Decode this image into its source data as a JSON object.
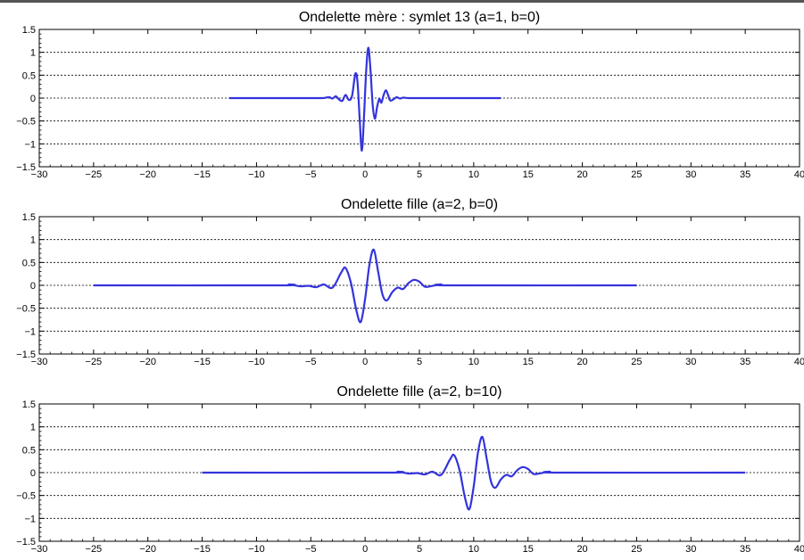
{
  "colors": {
    "line": "#3333dd",
    "grid": "#000000",
    "axis": "#000000",
    "background": "#ffffff"
  },
  "chart_data": [
    {
      "type": "line",
      "title": "Ondelette mère : symlet 13 (a=1, b=0)",
      "xlabel": "",
      "ylabel": "",
      "xlim": [
        -30,
        40
      ],
      "ylim": [
        -1.5,
        1.5
      ],
      "xticks": [
        -30,
        -25,
        -20,
        -15,
        -10,
        -5,
        0,
        5,
        10,
        15,
        20,
        25,
        30,
        35,
        40
      ],
      "xtick_labels": [
        "−30",
        "−25",
        "−20",
        "−15",
        "−10",
        "−5",
        "0",
        "5",
        "10",
        "15",
        "20",
        "25",
        "30",
        "35",
        "40"
      ],
      "yticks": [
        -1.5,
        -1,
        -0.5,
        0,
        0.5,
        1,
        1.5
      ],
      "ytick_labels": [
        "−1.5",
        "−1",
        "−0.5",
        "0",
        "0.5",
        "1",
        "1.5"
      ],
      "grid": "horizontal dotted",
      "series": [
        {
          "x": [
            -12.5,
            -5,
            -4,
            -3.6,
            -3.3,
            -3.0,
            -2.7,
            -2.4,
            -2.1,
            -1.8,
            -1.5,
            -1.2,
            -0.9,
            -0.7,
            -0.5,
            -0.3,
            -0.1,
            0.1,
            0.3,
            0.5,
            0.7,
            0.9,
            1.1,
            1.3,
            1.5,
            1.7,
            1.9,
            2.1,
            2.3,
            2.6,
            2.9,
            3.2,
            3.5,
            4.0,
            5.0,
            12.5
          ],
          "y": [
            0,
            0,
            0,
            0.01,
            0.02,
            -0.01,
            0.04,
            -0.03,
            -0.06,
            0.07,
            -0.04,
            0.05,
            0.53,
            0.35,
            -0.45,
            -1.15,
            -0.4,
            0.6,
            1.1,
            0.6,
            -0.15,
            -0.45,
            -0.2,
            -0.02,
            -0.1,
            0.06,
            0.17,
            0.08,
            -0.05,
            -0.03,
            0.02,
            -0.01,
            0.01,
            0,
            0,
            0
          ]
        }
      ]
    },
    {
      "type": "line",
      "title": "Ondelette fille (a=2, b=0)",
      "xlabel": "",
      "ylabel": "",
      "xlim": [
        -30,
        40
      ],
      "ylim": [
        -1.5,
        1.5
      ],
      "xticks": [
        -30,
        -25,
        -20,
        -15,
        -10,
        -5,
        0,
        5,
        10,
        15,
        20,
        25,
        30,
        35,
        40
      ],
      "xtick_labels": [
        "−30",
        "−25",
        "−20",
        "−15",
        "−10",
        "−5",
        "0",
        "5",
        "10",
        "15",
        "20",
        "25",
        "30",
        "35",
        "40"
      ],
      "yticks": [
        -1.5,
        -1,
        -0.5,
        0,
        0.5,
        1,
        1.5
      ],
      "ytick_labels": [
        "−1.5",
        "−1",
        "−0.5",
        "0",
        "0.5",
        "1",
        "1.5"
      ],
      "grid": "horizontal dotted",
      "series": [
        {
          "x": [
            -25,
            -8,
            -7,
            -6,
            -5.2,
            -4.5,
            -3.8,
            -3.0,
            -2.2,
            -1.8,
            -1.3,
            -0.8,
            -0.4,
            0,
            0.4,
            0.8,
            1.2,
            1.6,
            2.0,
            2.5,
            3.0,
            3.5,
            4.0,
            4.5,
            5.0,
            5.5,
            6.0,
            7.0,
            8.0,
            25
          ],
          "y": [
            0,
            0,
            0.02,
            -0.02,
            -0.01,
            -0.04,
            0.02,
            -0.05,
            0.28,
            0.38,
            0.05,
            -0.55,
            -0.8,
            -0.3,
            0.45,
            0.78,
            0.3,
            -0.2,
            -0.33,
            -0.15,
            -0.05,
            -0.08,
            0.05,
            0.12,
            0.08,
            -0.03,
            -0.02,
            0.02,
            0,
            0
          ]
        }
      ]
    },
    {
      "type": "line",
      "title": "Ondelette fille (a=2, b=10)",
      "xlabel": "",
      "ylabel": "",
      "xlim": [
        -30,
        40
      ],
      "ylim": [
        -1.5,
        1.5
      ],
      "xticks": [
        -30,
        -25,
        -20,
        -15,
        -10,
        -5,
        0,
        5,
        10,
        15,
        20,
        25,
        30,
        35,
        40
      ],
      "xtick_labels": [
        "−30",
        "−25",
        "−20",
        "−15",
        "−10",
        "−5",
        "0",
        "5",
        "10",
        "15",
        "20",
        "25",
        "30",
        "35",
        "40"
      ],
      "yticks": [
        -1.5,
        -1,
        -0.5,
        0,
        0.5,
        1,
        1.5
      ],
      "ytick_labels": [
        "−1.5",
        "−1",
        "−0.5",
        "0",
        "0.5",
        "1",
        "1.5"
      ],
      "grid": "horizontal dotted",
      "series": [
        {
          "x": [
            -15,
            2,
            3,
            4,
            4.8,
            5.5,
            6.2,
            7.0,
            7.8,
            8.2,
            8.7,
            9.2,
            9.6,
            10.0,
            10.4,
            10.8,
            11.2,
            11.6,
            12.0,
            12.5,
            13.0,
            13.5,
            14.0,
            14.5,
            15.0,
            15.5,
            16.0,
            17.0,
            18.0,
            35
          ],
          "y": [
            0,
            0,
            0.02,
            -0.02,
            -0.01,
            -0.04,
            0.02,
            -0.05,
            0.28,
            0.38,
            0.05,
            -0.55,
            -0.8,
            -0.3,
            0.45,
            0.78,
            0.3,
            -0.2,
            -0.33,
            -0.15,
            -0.05,
            -0.08,
            0.05,
            0.12,
            0.08,
            -0.03,
            -0.02,
            0.02,
            0,
            0
          ]
        }
      ]
    }
  ]
}
